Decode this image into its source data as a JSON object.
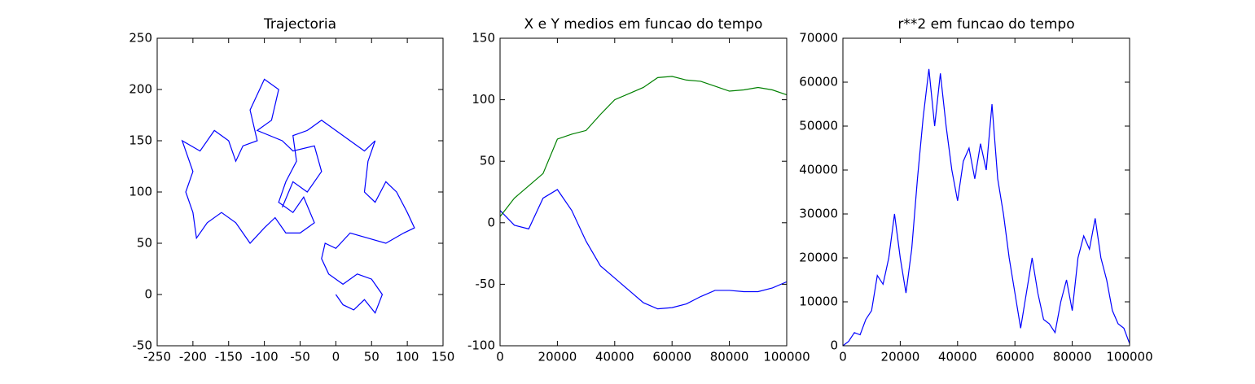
{
  "chart_data": [
    {
      "type": "line",
      "title": "Trajectoria",
      "x": [
        0,
        10,
        25,
        40,
        55,
        65,
        50,
        30,
        10,
        -10,
        -20,
        -15,
        0,
        20,
        45,
        70,
        95,
        110,
        100,
        85,
        70,
        55,
        40,
        45,
        55,
        40,
        20,
        0,
        -20,
        -40,
        -60,
        -55,
        -70,
        -80,
        -60,
        -45,
        -30,
        -50,
        -70,
        -85,
        -100,
        -120,
        -140,
        -160,
        -180,
        -195,
        -200,
        -210,
        -200,
        -215,
        -190,
        -170,
        -150,
        -140,
        -130,
        -110,
        -120,
        -100,
        -80,
        -90,
        -110,
        -75,
        -60,
        -30,
        -20,
        -40,
        -60,
        -75
      ],
      "series": [
        {
          "color": "#0000ff",
          "values": [
            0,
            -10,
            -15,
            -5,
            -18,
            0,
            15,
            20,
            10,
            20,
            35,
            50,
            45,
            60,
            55,
            50,
            60,
            65,
            80,
            100,
            110,
            90,
            100,
            130,
            150,
            140,
            150,
            160,
            170,
            160,
            155,
            130,
            110,
            90,
            80,
            95,
            70,
            60,
            60,
            75,
            65,
            50,
            70,
            80,
            70,
            55,
            80,
            100,
            120,
            150,
            140,
            160,
            150,
            130,
            145,
            150,
            180,
            210,
            200,
            170,
            160,
            150,
            140,
            145,
            120,
            100,
            110,
            85
          ]
        }
      ],
      "xlim": [
        -250,
        150
      ],
      "xticks": [
        -250,
        -200,
        -150,
        -100,
        -50,
        0,
        50,
        100,
        150
      ],
      "ylim": [
        -50,
        250
      ],
      "yticks": [
        -50,
        0,
        50,
        100,
        150,
        200,
        250
      ]
    },
    {
      "type": "line",
      "title": "X e Y medios em funcao do tempo",
      "x": [
        0,
        5000,
        10000,
        15000,
        20000,
        25000,
        30000,
        35000,
        40000,
        45000,
        50000,
        55000,
        60000,
        65000,
        70000,
        75000,
        80000,
        85000,
        90000,
        95000,
        100000
      ],
      "series": [
        {
          "color": "#0000ff",
          "values": [
            10,
            -2,
            -5,
            20,
            27,
            10,
            -15,
            -35,
            -45,
            -55,
            -65,
            -70,
            -69,
            -66,
            -60,
            -55,
            -55,
            -56,
            -56,
            -53,
            -48
          ]
        },
        {
          "color": "#008000",
          "values": [
            5,
            20,
            30,
            40,
            68,
            72,
            75,
            88,
            100,
            105,
            110,
            118,
            119,
            116,
            115,
            111,
            107,
            108,
            110,
            108,
            104
          ]
        }
      ],
      "xlim": [
        0,
        100000
      ],
      "xticks": [
        0,
        20000,
        40000,
        60000,
        80000,
        100000
      ],
      "ylim": [
        -100,
        150
      ],
      "yticks": [
        -100,
        -50,
        0,
        50,
        100,
        150
      ]
    },
    {
      "type": "line",
      "title": "r**2 em funcao do tempo",
      "x": [
        0,
        2000,
        4000,
        6000,
        8000,
        10000,
        12000,
        14000,
        16000,
        18000,
        20000,
        22000,
        24000,
        26000,
        28000,
        30000,
        32000,
        34000,
        36000,
        38000,
        40000,
        42000,
        44000,
        46000,
        48000,
        50000,
        52000,
        54000,
        56000,
        58000,
        60000,
        62000,
        64000,
        66000,
        68000,
        70000,
        72000,
        74000,
        76000,
        78000,
        80000,
        82000,
        84000,
        86000,
        88000,
        90000,
        92000,
        94000,
        96000,
        98000,
        100000
      ],
      "series": [
        {
          "color": "#0000ff",
          "values": [
            0,
            1000,
            3000,
            2500,
            6000,
            8000,
            16000,
            14000,
            20000,
            30000,
            20000,
            12000,
            22000,
            38000,
            52000,
            63000,
            50000,
            62000,
            50000,
            40000,
            33000,
            42000,
            45000,
            38000,
            46000,
            40000,
            55000,
            38000,
            30000,
            20000,
            12000,
            4000,
            12000,
            20000,
            12000,
            6000,
            5000,
            3000,
            10000,
            15000,
            8000,
            20000,
            25000,
            22000,
            29000,
            20000,
            15000,
            8000,
            5000,
            4000,
            500
          ]
        }
      ],
      "xlim": [
        0,
        100000
      ],
      "xticks": [
        0,
        20000,
        40000,
        60000,
        80000,
        100000
      ],
      "ylim": [
        0,
        70000
      ],
      "yticks": [
        0,
        10000,
        20000,
        30000,
        40000,
        50000,
        60000,
        70000
      ]
    }
  ]
}
